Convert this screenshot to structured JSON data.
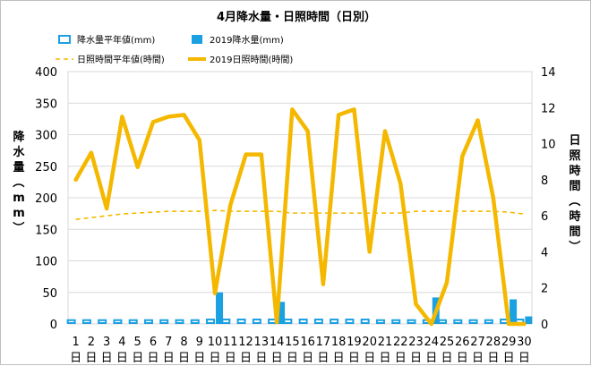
{
  "chart_data": {
    "type": "bar",
    "title": "4月降水量・日照時間（日別）",
    "y_left_label": "降水量（mm）",
    "y_right_label": "日照時間（時間）",
    "y_left_range": [
      0,
      400
    ],
    "y_left_ticks": [
      "0",
      "50",
      "100",
      "150",
      "200",
      "250",
      "300",
      "350",
      "400"
    ],
    "y_right_range": [
      0,
      14
    ],
    "y_right_ticks": [
      "0",
      "2",
      "4",
      "6",
      "8",
      "10",
      "12",
      "14"
    ],
    "categories": [
      "1",
      "2",
      "3",
      "4",
      "5",
      "6",
      "7",
      "8",
      "9",
      "10",
      "11",
      "12",
      "13",
      "14",
      "15",
      "16",
      "17",
      "18",
      "19",
      "20",
      "21",
      "22",
      "23",
      "24",
      "25",
      "26",
      "27",
      "28",
      "29",
      "30"
    ],
    "day_suffix": "日",
    "grid": true,
    "legend_position": "top",
    "colors": {
      "precip_normal": "#1BA1E2",
      "precip_2019": "#1BA1E2",
      "sun_normal": "#F5B800",
      "sun_2019": "#F5B800"
    },
    "series": [
      {
        "name": "降水量平年値(mm)",
        "kind": "bar-outline",
        "axis": "left",
        "values": [
          6,
          6,
          6,
          6,
          6,
          6,
          6,
          6,
          6,
          7,
          7,
          7,
          7,
          7,
          7,
          7,
          7,
          7,
          7,
          7,
          6,
          6,
          6,
          6,
          6,
          6,
          6,
          6,
          7,
          7
        ]
      },
      {
        "name": "2019降水量(mm)",
        "kind": "bar",
        "axis": "left",
        "values": [
          0,
          0,
          0,
          0,
          0,
          0,
          0,
          0,
          0,
          50,
          0,
          0,
          0,
          35,
          0,
          0,
          0,
          0,
          0,
          0,
          0,
          0,
          0,
          42,
          0,
          0,
          0,
          0,
          39,
          12
        ]
      },
      {
        "name": "日照時間平年値(時間)",
        "kind": "line-dashed",
        "axis": "right",
        "values": [
          5.8,
          5.9,
          6.0,
          6.1,
          6.15,
          6.2,
          6.25,
          6.25,
          6.25,
          6.3,
          6.25,
          6.25,
          6.25,
          6.25,
          6.15,
          6.15,
          6.15,
          6.15,
          6.15,
          6.15,
          6.15,
          6.15,
          6.25,
          6.25,
          6.25,
          6.25,
          6.25,
          6.25,
          6.2,
          6.1
        ]
      },
      {
        "name": "2019日照時間(時間)",
        "kind": "line",
        "axis": "right",
        "values": [
          8.0,
          9.5,
          6.4,
          11.5,
          8.7,
          11.2,
          11.5,
          11.6,
          10.2,
          1.7,
          6.6,
          9.4,
          9.4,
          0.1,
          11.9,
          10.7,
          2.2,
          11.6,
          11.9,
          4.0,
          10.7,
          7.8,
          1.1,
          0.0,
          2.3,
          9.3,
          11.3,
          7.0,
          0.0,
          0.0
        ]
      }
    ]
  }
}
